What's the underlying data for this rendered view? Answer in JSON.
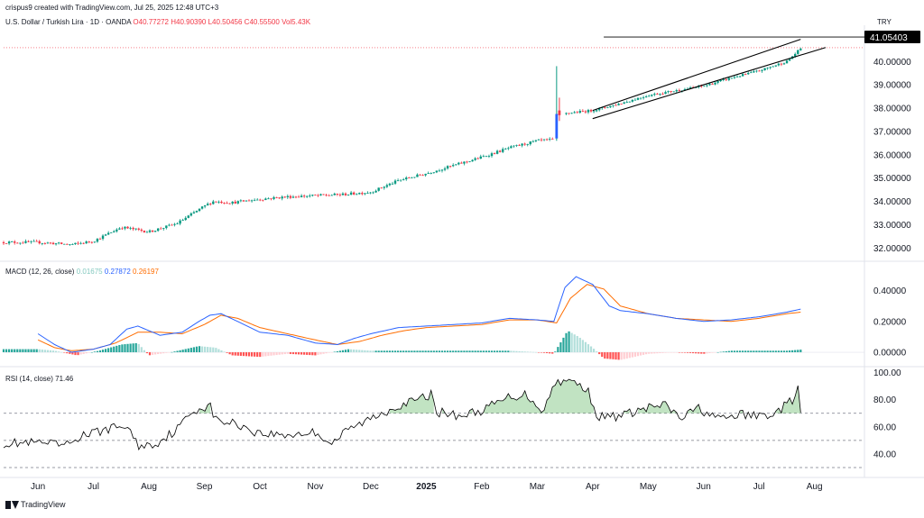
{
  "header": {
    "author_line": "crispus9 created with TradingView.com, Jul 25, 2025 12:48 UTC+3",
    "symbol": "U.S. Dollar / Turkish Lira · 1D · OANDA",
    "open": "O40.77272",
    "high": "H40.90390",
    "low": "L40.50456",
    "close": "C40.55500",
    "vol": "Vol5.43K",
    "currency": "TRY"
  },
  "price_badge": "41.05403",
  "macd_legend": {
    "label": "MACD (12, 26, close)",
    "hist": "0.01675",
    "macd": "0.27872",
    "signal": "0.26197"
  },
  "rsi_legend": {
    "label": "RSI (14, close)",
    "value": "71.46"
  },
  "footer": {
    "brand": "TradingView"
  },
  "colors": {
    "up": "#089981",
    "down": "#f23645",
    "macd": "#2962ff",
    "signal": "#ff6d00",
    "rsi": "#000000",
    "badge_bg": "#000000"
  },
  "chart_data": [
    {
      "type": "candlestick",
      "title": "U.S. Dollar / Turkish Lira · 1D · OANDA",
      "x_tick_labels": [
        "Jun",
        "Jul",
        "Aug",
        "Sep",
        "Oct",
        "Nov",
        "Dec",
        "2025",
        "Feb",
        "Mar",
        "Apr",
        "May",
        "Jun",
        "Jul",
        "Aug"
      ],
      "y_ticks": [
        32,
        33,
        34,
        35,
        36,
        37,
        38,
        39,
        40
      ],
      "ylim": [
        31.9,
        41.4
      ],
      "anchors_month_index_close": [
        [
          0,
          32.25
        ],
        [
          0.6,
          32.15
        ],
        [
          1.0,
          32.3
        ],
        [
          1.5,
          32.9
        ],
        [
          2.0,
          32.7
        ],
        [
          2.5,
          33.05
        ],
        [
          3.0,
          33.8
        ],
        [
          3.15,
          34.0
        ],
        [
          3.5,
          33.95
        ],
        [
          4.0,
          34.1
        ],
        [
          4.5,
          34.2
        ],
        [
          5.0,
          34.25
        ],
        [
          5.5,
          34.3
        ],
        [
          6.0,
          34.4
        ],
        [
          6.5,
          34.9
        ],
        [
          7.0,
          35.2
        ],
        [
          7.5,
          35.55
        ],
        [
          8.0,
          35.9
        ],
        [
          8.5,
          36.3
        ],
        [
          9.0,
          36.6
        ],
        [
          9.3,
          36.65
        ],
        [
          9.35,
          37.7
        ],
        [
          9.6,
          37.8
        ],
        [
          10.0,
          37.9
        ],
        [
          10.5,
          38.2
        ],
        [
          11.0,
          38.55
        ],
        [
          11.5,
          38.75
        ],
        [
          12.0,
          38.95
        ],
        [
          12.5,
          39.3
        ],
        [
          13.0,
          39.6
        ],
        [
          13.5,
          40.0
        ],
        [
          13.75,
          40.55
        ]
      ],
      "highlight_candles": [
        {
          "month_index": 9.35,
          "open": 36.7,
          "close": 37.75,
          "high": 39.8,
          "low": 36.6
        },
        {
          "month_index": 9.4,
          "open": 37.9,
          "close": 37.7,
          "high": 38.45,
          "low": 37.45
        }
      ],
      "channel": {
        "upper": [
          [
            10.0,
            37.9
          ],
          [
            13.75,
            40.95
          ]
        ],
        "lower": [
          [
            10.0,
            37.55
          ],
          [
            14.2,
            40.6
          ]
        ]
      },
      "horizontal_line": {
        "value": 41.05,
        "from_month_index": 10.2
      },
      "last_price": 41.05403
    },
    {
      "type": "line",
      "title": "MACD (12, 26, close)",
      "y_ticks": [
        0,
        0.2,
        0.4
      ],
      "ylim": [
        -0.07,
        0.52
      ],
      "series": [
        {
          "name": "MACD",
          "points": [
            [
              0,
              0.12
            ],
            [
              0.3,
              0.05
            ],
            [
              0.6,
              0.0
            ],
            [
              1.0,
              0.02
            ],
            [
              1.3,
              0.05
            ],
            [
              1.6,
              0.15
            ],
            [
              1.8,
              0.17
            ],
            [
              2.2,
              0.11
            ],
            [
              2.6,
              0.13
            ],
            [
              2.9,
              0.2
            ],
            [
              3.1,
              0.24
            ],
            [
              3.3,
              0.25
            ],
            [
              3.6,
              0.2
            ],
            [
              4.0,
              0.13
            ],
            [
              4.5,
              0.11
            ],
            [
              5.0,
              0.06
            ],
            [
              5.4,
              0.05
            ],
            [
              5.7,
              0.09
            ],
            [
              6.0,
              0.12
            ],
            [
              6.5,
              0.16
            ],
            [
              7.0,
              0.17
            ],
            [
              7.5,
              0.18
            ],
            [
              8.0,
              0.19
            ],
            [
              8.5,
              0.22
            ],
            [
              9.0,
              0.21
            ],
            [
              9.3,
              0.2
            ],
            [
              9.5,
              0.42
            ],
            [
              9.7,
              0.49
            ],
            [
              10.0,
              0.44
            ],
            [
              10.3,
              0.3
            ],
            [
              10.5,
              0.27
            ],
            [
              11.0,
              0.25
            ],
            [
              11.5,
              0.22
            ],
            [
              12.0,
              0.2
            ],
            [
              12.5,
              0.21
            ],
            [
              13.0,
              0.23
            ],
            [
              13.5,
              0.26
            ],
            [
              13.75,
              0.28
            ]
          ]
        },
        {
          "name": "Signal",
          "points": [
            [
              0,
              0.08
            ],
            [
              0.3,
              0.03
            ],
            [
              0.6,
              0.01
            ],
            [
              1.0,
              0.02
            ],
            [
              1.4,
              0.06
            ],
            [
              1.8,
              0.13
            ],
            [
              2.2,
              0.13
            ],
            [
              2.6,
              0.12
            ],
            [
              3.0,
              0.18
            ],
            [
              3.3,
              0.24
            ],
            [
              3.6,
              0.22
            ],
            [
              4.0,
              0.16
            ],
            [
              4.5,
              0.12
            ],
            [
              5.0,
              0.08
            ],
            [
              5.4,
              0.05
            ],
            [
              5.8,
              0.07
            ],
            [
              6.2,
              0.11
            ],
            [
              6.6,
              0.14
            ],
            [
              7.0,
              0.16
            ],
            [
              7.5,
              0.17
            ],
            [
              8.0,
              0.18
            ],
            [
              8.5,
              0.21
            ],
            [
              9.0,
              0.21
            ],
            [
              9.35,
              0.19
            ],
            [
              9.6,
              0.35
            ],
            [
              9.9,
              0.44
            ],
            [
              10.2,
              0.41
            ],
            [
              10.5,
              0.3
            ],
            [
              11.0,
              0.25
            ],
            [
              11.5,
              0.22
            ],
            [
              12.0,
              0.21
            ],
            [
              12.5,
              0.2
            ],
            [
              13.0,
              0.22
            ],
            [
              13.5,
              0.25
            ],
            [
              13.75,
              0.26
            ]
          ]
        }
      ],
      "histogram_anchors": [
        [
          0,
          0.02
        ],
        [
          0.3,
          0.01
        ],
        [
          0.7,
          -0.02
        ],
        [
          1.1,
          0.01
        ],
        [
          1.5,
          0.05
        ],
        [
          1.8,
          0.06
        ],
        [
          2.0,
          -0.02
        ],
        [
          2.4,
          0.0
        ],
        [
          2.9,
          0.04
        ],
        [
          3.2,
          0.03
        ],
        [
          3.5,
          -0.02
        ],
        [
          4.0,
          -0.03
        ],
        [
          4.5,
          -0.01
        ],
        [
          5.0,
          -0.02
        ],
        [
          5.6,
          0.02
        ],
        [
          6.0,
          0.01
        ],
        [
          6.5,
          0.01
        ],
        [
          7.0,
          0.01
        ],
        [
          7.5,
          0.01
        ],
        [
          8.0,
          0.01
        ],
        [
          8.5,
          0.01
        ],
        [
          9.0,
          0.0
        ],
        [
          9.3,
          -0.01
        ],
        [
          9.55,
          0.14
        ],
        [
          9.75,
          0.1
        ],
        [
          10.0,
          0.03
        ],
        [
          10.2,
          -0.04
        ],
        [
          10.5,
          -0.05
        ],
        [
          11.0,
          -0.01
        ],
        [
          11.5,
          0.0
        ],
        [
          12.0,
          -0.01
        ],
        [
          12.5,
          0.01
        ],
        [
          13.0,
          0.01
        ],
        [
          13.5,
          0.01
        ],
        [
          13.75,
          0.017
        ]
      ]
    },
    {
      "type": "line",
      "title": "RSI (14, close)",
      "y_ticks": [
        40,
        60,
        80,
        100
      ],
      "ylim": [
        28,
        103
      ],
      "reference_lines": [
        30,
        50,
        70
      ],
      "series": [
        {
          "name": "RSI",
          "points": [
            [
              0,
              48
            ],
            [
              0.5,
              46
            ],
            [
              0.8,
              54
            ],
            [
              1.0,
              55
            ],
            [
              1.2,
              58
            ],
            [
              1.6,
              61
            ],
            [
              1.8,
              46
            ],
            [
              2.1,
              47
            ],
            [
              2.5,
              58
            ],
            [
              2.8,
              72
            ],
            [
              3.1,
              76
            ],
            [
              3.2,
              65
            ],
            [
              3.6,
              62
            ],
            [
              4.0,
              55
            ],
            [
              4.5,
              54
            ],
            [
              5.0,
              56
            ],
            [
              5.3,
              48
            ],
            [
              5.6,
              58
            ],
            [
              6.0,
              66
            ],
            [
              6.5,
              76
            ],
            [
              6.8,
              79
            ],
            [
              7.1,
              84
            ],
            [
              7.2,
              71
            ],
            [
              7.6,
              68
            ],
            [
              8.0,
              72
            ],
            [
              8.5,
              82
            ],
            [
              8.8,
              84
            ],
            [
              9.1,
              72
            ],
            [
              9.35,
              94
            ],
            [
              9.6,
              94
            ],
            [
              9.9,
              88
            ],
            [
              10.1,
              67
            ],
            [
              10.5,
              68
            ],
            [
              11.0,
              74
            ],
            [
              11.3,
              76
            ],
            [
              11.6,
              66
            ],
            [
              11.9,
              74
            ],
            [
              12.3,
              65
            ],
            [
              12.6,
              69
            ],
            [
              13.0,
              68
            ],
            [
              13.3,
              70
            ],
            [
              13.6,
              80
            ],
            [
              13.7,
              87
            ],
            [
              13.75,
              71
            ]
          ]
        }
      ]
    }
  ]
}
